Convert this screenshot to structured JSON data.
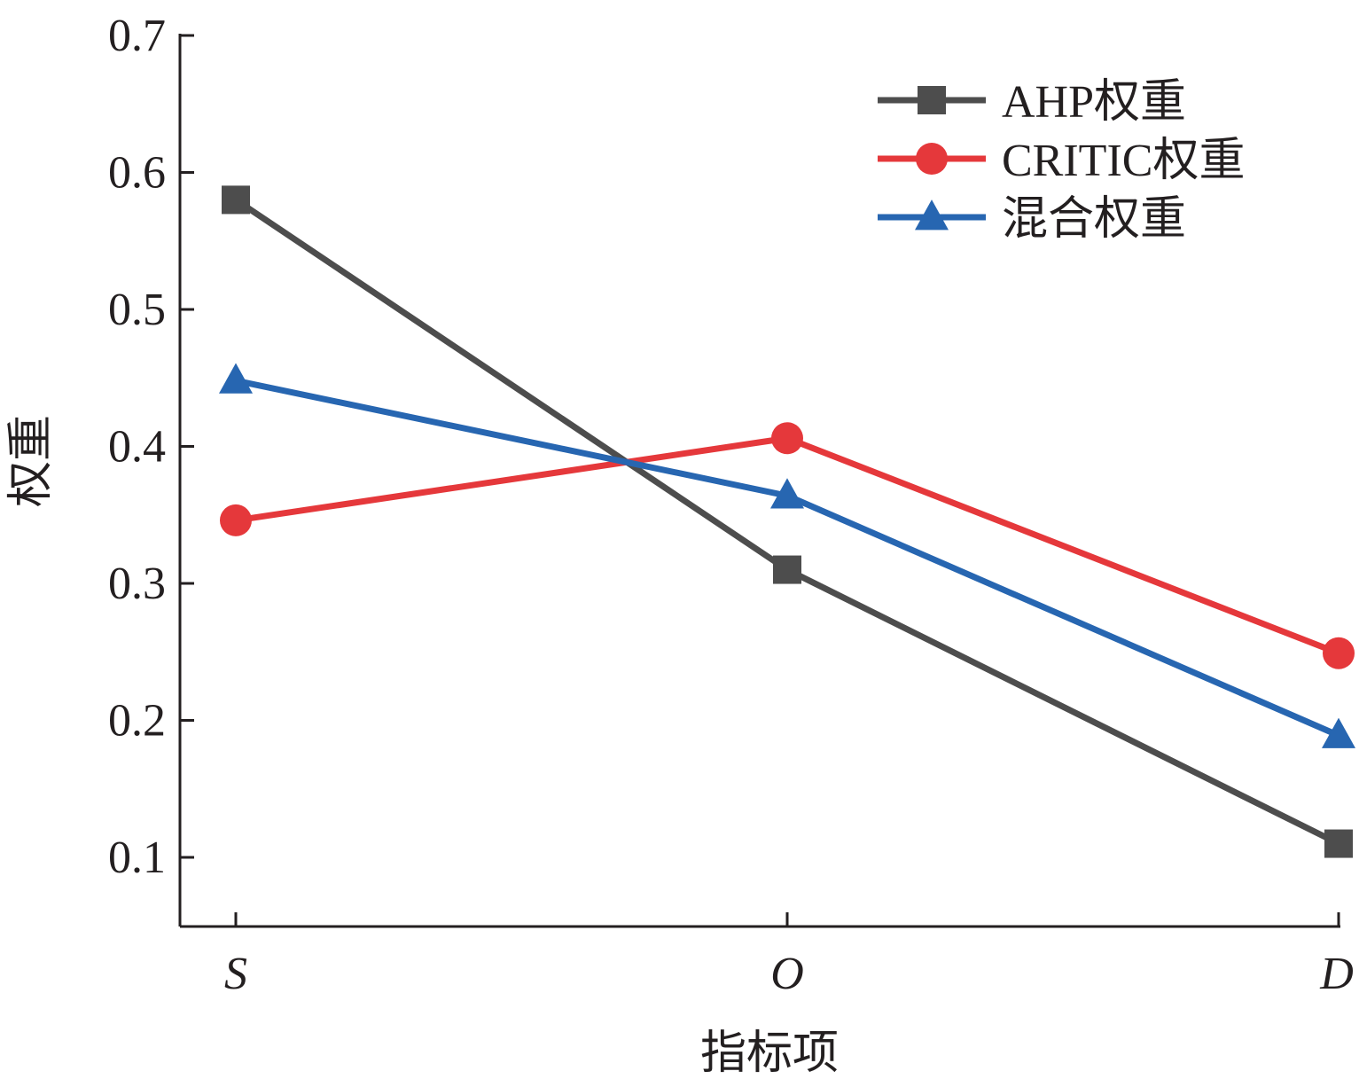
{
  "chart_data": {
    "type": "line",
    "categories": [
      "S",
      "O",
      "D"
    ],
    "ylabel": "权重",
    "xlabel": "指标项",
    "ylim": [
      0.05,
      0.7
    ],
    "yticks": [
      "0.1",
      "0.2",
      "0.3",
      "0.4",
      "0.5",
      "0.6",
      "0.7"
    ],
    "grid": false,
    "legend_position": "top-right",
    "series": [
      {
        "name": "AHP权重",
        "values": [
          0.58,
          0.31,
          0.11
        ],
        "color": "#4d4d4d",
        "marker": "square"
      },
      {
        "name": "CRITIC权重",
        "values": [
          0.346,
          0.406,
          0.249
        ],
        "color": "#e5383b",
        "marker": "circle"
      },
      {
        "name": "混合权重",
        "values": [
          0.448,
          0.364,
          0.189
        ],
        "color": "#2766b1",
        "marker": "triangle"
      }
    ]
  }
}
